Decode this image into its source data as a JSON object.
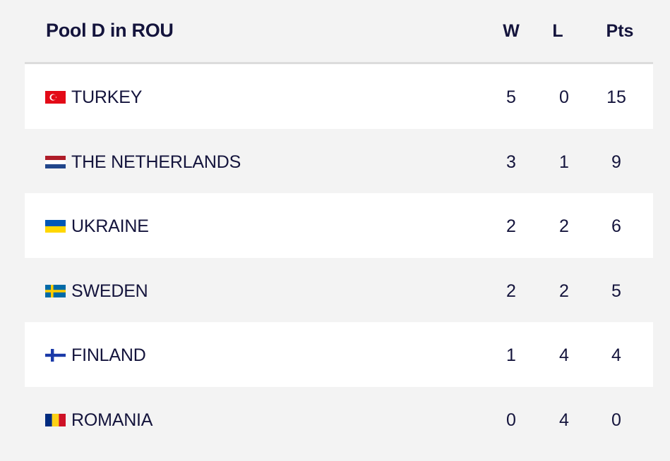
{
  "header": {
    "title": "Pool D in ROU",
    "col_w": "W",
    "col_l": "L",
    "col_pts": "Pts"
  },
  "teams": [
    {
      "name": "TURKEY",
      "flag": "turkey-flag-icon",
      "w": "5",
      "l": "0",
      "pts": "15"
    },
    {
      "name": "THE NETHERLANDS",
      "flag": "netherlands-flag-icon",
      "w": "3",
      "l": "1",
      "pts": "9"
    },
    {
      "name": "UKRAINE",
      "flag": "ukraine-flag-icon",
      "w": "2",
      "l": "2",
      "pts": "6"
    },
    {
      "name": "SWEDEN",
      "flag": "sweden-flag-icon",
      "w": "2",
      "l": "2",
      "pts": "5"
    },
    {
      "name": "FINLAND",
      "flag": "finland-flag-icon",
      "w": "1",
      "l": "4",
      "pts": "4"
    },
    {
      "name": "ROMANIA",
      "flag": "romania-flag-icon",
      "w": "0",
      "l": "4",
      "pts": "0"
    }
  ],
  "colors": {
    "text": "#14143c",
    "row_light": "#ffffff",
    "row_shade": "#f3f3f3",
    "divider": "#dcdcdc"
  }
}
